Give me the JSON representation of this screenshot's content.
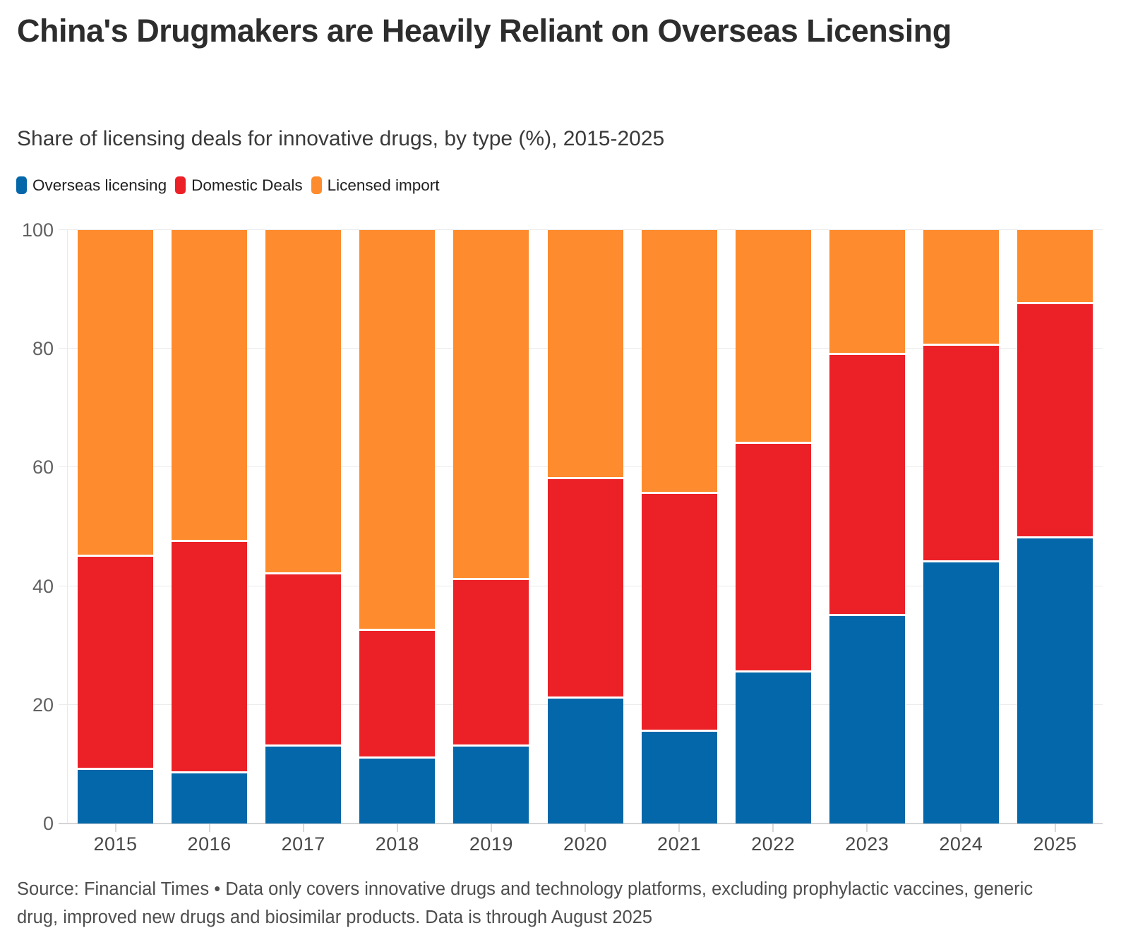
{
  "header": {
    "title": "China's Drugmakers are Heavily Reliant on Overseas Licensing",
    "subtitle": "Share of licensing deals for innovative drugs, by type (%), 2015-2025"
  },
  "legend": [
    {
      "label": "Overseas licensing",
      "color": "#0467a9"
    },
    {
      "label": "Domestic Deals",
      "color": "#ec2127"
    },
    {
      "label": "Licensed import",
      "color": "#fe8b2d"
    }
  ],
  "chart_data": {
    "type": "bar",
    "stacked": true,
    "stack_total": 100,
    "title": "China's Drugmakers are Heavily Reliant on Overseas Licensing",
    "subtitle": "Share of licensing deals for innovative drugs, by type (%), 2015-2025",
    "xlabel": "",
    "ylabel": "",
    "ylim": [
      0,
      100
    ],
    "yticks": [
      0,
      20,
      40,
      60,
      80,
      100
    ],
    "grid": "horizontal",
    "legend_position": "top-left",
    "categories": [
      "2015",
      "2016",
      "2017",
      "2018",
      "2019",
      "2020",
      "2021",
      "2022",
      "2023",
      "2024",
      "2025"
    ],
    "series": [
      {
        "name": "Overseas licensing",
        "color": "#0467a9",
        "values": [
          9,
          8.5,
          13,
          11,
          13,
          21,
          15.5,
          25.5,
          35,
          44,
          48
        ]
      },
      {
        "name": "Domestic Deals",
        "color": "#ec2127",
        "values": [
          36,
          39,
          29,
          21.5,
          28,
          37,
          40,
          38.5,
          44,
          36.5,
          39.5
        ]
      },
      {
        "name": "Licensed import",
        "color": "#fe8b2d",
        "values": [
          55,
          52.5,
          58,
          67.5,
          59,
          42,
          44.5,
          36,
          21,
          19.5,
          12.5
        ]
      }
    ]
  },
  "footer": {
    "source": "Source: Financial Times • Data only covers innovative drugs and technology platforms, excluding prophylactic vaccines, generic drug, improved new drugs and biosimilar products. Data is through August 2025"
  }
}
